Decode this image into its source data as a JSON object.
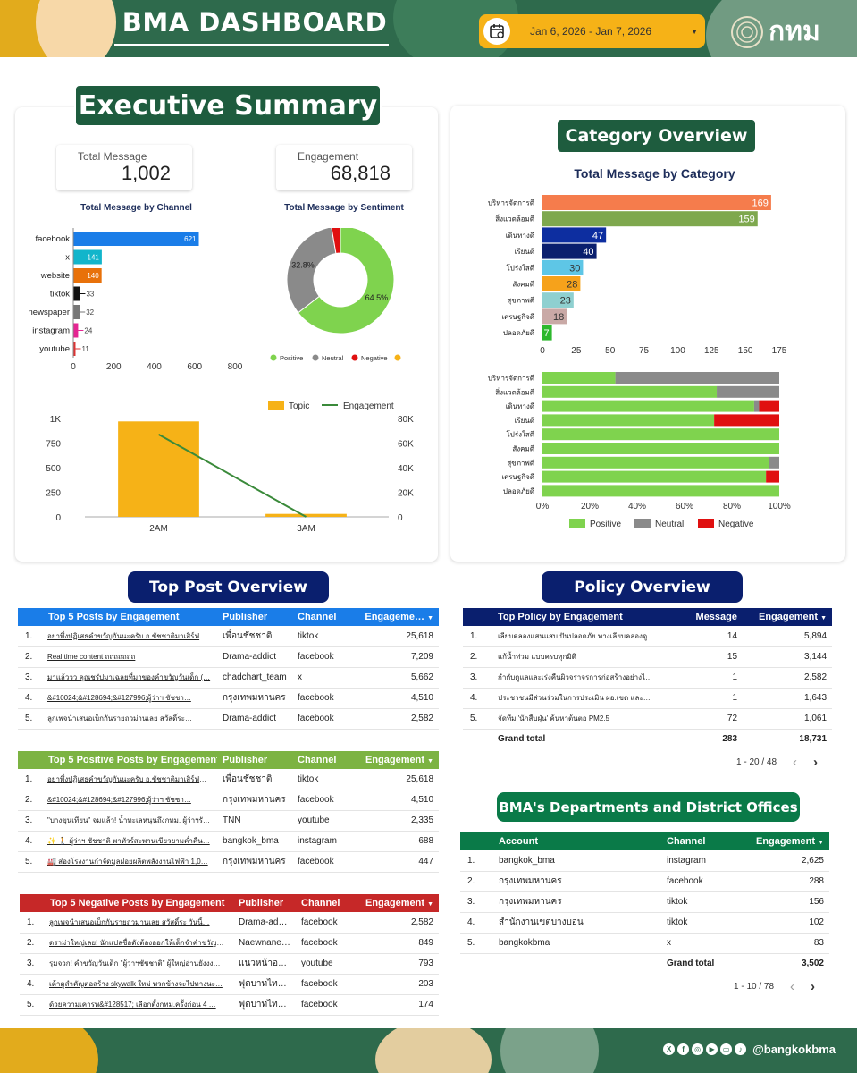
{
  "header": {
    "title": "BMA DASHBOARD",
    "date_range": "Jan 6, 2026 - Jan 7, 2026",
    "logo_text": "กทม"
  },
  "exec": {
    "title": "Executive Summary",
    "kpis": [
      {
        "label": "Total Message",
        "value": "1,002"
      },
      {
        "label": "Engagement",
        "value": "68,818"
      }
    ],
    "channel_title": "Total Message by Channel",
    "sentiment_title": "Total Message by Sentiment",
    "legend_topic": "Topic",
    "legend_engagement": "Engagement"
  },
  "category": {
    "title": "Category Overview",
    "chart_title": "Total Message by Category"
  },
  "top_post": {
    "title": "Top Post Overview",
    "tables": [
      {
        "headers": [
          "Top 5 Posts by Engagement",
          "Publisher",
          "Channel",
          "Engageme…"
        ],
        "rows": [
          [
            "1.",
            "อย่าพึ่งปฏิเสธคำขวัญกันนะครับ อ.ชัชชาติมาเสิร์ฟคำ…",
            "เพื่อนชัชชาติ",
            "tiktok",
            "25,618"
          ],
          [
            "2.",
            "Real time content ถถถถถถถ",
            "Drama-addict",
            "facebook",
            "7,209"
          ],
          [
            "3.",
            "มาแล้ววว คุณชรัปมาเฉลยที่มาของคำขวัญวันเด็ก (…",
            "chadchart_team",
            "x",
            "5,662"
          ],
          [
            "4.",
            "&#10024;&#128694;&#127996;ผู้ว่าฯ ชัชชา…",
            "กรุงเทพมหานคร",
            "facebook",
            "4,510"
          ],
          [
            "5.",
            "ลูกเพจนำเสนอเบ็กกันรายถวม่านเลย สวัสดิ์ระ…",
            "Drama-addict",
            "facebook",
            "2,582"
          ]
        ]
      },
      {
        "headers": [
          "Top 5 Positive Posts by Engagement",
          "Publisher",
          "Channel",
          "Engagement"
        ],
        "rows": [
          [
            "1.",
            "อย่าพึ่งปฏิเสธคำขวัญกันนะครับ อ.ชัชชาติมาเสิร์ฟคำ…",
            "เพื่อนชัชชาติ",
            "tiktok",
            "25,618"
          ],
          [
            "2.",
            "&#10024;&#128694;&#127996;ผู้ว่าฯ ชัชชา…",
            "กรุงเทพมหานคร",
            "facebook",
            "4,510"
          ],
          [
            "3.",
            "\"บางขุนเทียน\" จมแล้ว! น้ำทะเลหนุนถึงกทม. ผู้ว่าฯรั…",
            "TNN",
            "youtube",
            "2,335"
          ],
          [
            "4.",
            "✨ 🚶 ผู้ว่าฯ ชัชชาติ พาทัวร์สะพานเขียวยามค่ำคืน…",
            "bangkok_bma",
            "instagram",
            "688"
          ],
          [
            "5.",
            "🏭 ส่องโรงงานกำจัดมูลฝอยผลิตพลังงานไฟฟ้า 1,0…",
            "กรุงเทพมหานคร",
            "facebook",
            "447"
          ]
        ]
      },
      {
        "headers": [
          "Top 5 Negative Posts by Engagement",
          "Publisher",
          "Channel",
          "Engagement"
        ],
        "rows": [
          [
            "1.",
            "ลูกเพจนำเสนอเบ็กกันรายถวม่านเลย สวัสดิ์ระ วันนี้…",
            "Drama-add…",
            "facebook",
            "2,582"
          ],
          [
            "2.",
            "ดราม่าใหญ่เลย! นักแปลชื่อดังต้องออกให้เด็กจำคำขวัญผู้…",
            "Naewnane…",
            "facebook",
            "849"
          ],
          [
            "3.",
            "รุมจวก! คำขวัญวันเด็ก \"ผู้ว่าฯชัชชาติ\" ผู้ใหญ่อ่านยังงง…",
            "แนวหน้าออนไ…",
            "youtube",
            "793"
          ],
          [
            "4.",
            "เต้าตูสำคัญต่อสร้าง skywalk ใหม่ พวกข้างจะไปทางนะ…",
            "ฟุตบาทไทยไ…",
            "facebook",
            "203"
          ],
          [
            "5.",
            "ด้วยความเคารพ&#128517; เลือกตั้งกทม.ครั้งก่อน 4 …",
            "ฟุตบาทไทยไ…",
            "facebook",
            "174"
          ]
        ]
      }
    ]
  },
  "policy": {
    "title": "Policy Overview",
    "headers": [
      "Top Policy by Engagement",
      "Message",
      "Engagement"
    ],
    "rows": [
      [
        "1.",
        "เลียบคลองแสนแสบ ปันปลอดภัย ทางเลียบคลองดู…",
        "14",
        "5,894"
      ],
      [
        "2.",
        "แก้น้ำท่วม แบบครบทุกมิติ",
        "15",
        "3,144"
      ],
      [
        "3.",
        "กำกับดูแลและเร่งคืนผิวจราจรการก่อสร้างอย่างไ…",
        "1",
        "2,582"
      ],
      [
        "4.",
        "ประชาชนมีส่วนร่วมในการประเมิน ผอ.เขต และ…",
        "1",
        "1,643"
      ],
      [
        "5.",
        "จัดทีม 'นักสืบฝุ่น' ค้นหาต้นตอ PM2.5",
        "72",
        "1,061"
      ]
    ],
    "total_label": "Grand total",
    "total_message": "283",
    "total_engagement": "18,731",
    "pager": "1 - 20 / 48"
  },
  "departments": {
    "title": "BMA's Departments and District Offices",
    "headers": [
      "Account",
      "Channel",
      "Engagement"
    ],
    "rows": [
      [
        "1.",
        "bangkok_bma",
        "instagram",
        "2,625"
      ],
      [
        "2.",
        "กรุงเทพมหานคร",
        "facebook",
        "288"
      ],
      [
        "3.",
        "กรุงเทพมหานคร",
        "tiktok",
        "156"
      ],
      [
        "4.",
        "สำนักงานเขตบางบอน",
        "tiktok",
        "102"
      ],
      [
        "5.",
        "bangkokbma",
        "x",
        "83"
      ]
    ],
    "total_label": "Grand total",
    "total_engagement": "3,502",
    "pager": "1 - 10 / 78"
  },
  "footer": {
    "handle": "@bangkokbma"
  },
  "colors": {
    "green_dark": "#2e6a4c",
    "orange": "#f6b217",
    "navy": "#0a1f6e",
    "blue_header": "#1a7de8",
    "green_header": "#7cb342",
    "red_header": "#c62828",
    "dept_green": "#0a7a48",
    "positive": "#7fd34e",
    "neutral": "#8a8a8a",
    "negative": "#e01010"
  },
  "chart_data": [
    {
      "type": "bar",
      "orientation": "horizontal",
      "title": "Total Message by Channel",
      "categories": [
        "facebook",
        "x",
        "website",
        "tiktok",
        "newspaper",
        "instagram",
        "youtube"
      ],
      "values": [
        621,
        141,
        140,
        33,
        32,
        24,
        11
      ],
      "colors": [
        "#1a7de8",
        "#12b5cb",
        "#e8710a",
        "#111111",
        "#777777",
        "#e52592",
        "#d33"
      ],
      "xticks": [
        "0",
        "200",
        "400",
        "600",
        "800"
      ],
      "xlim": [
        0,
        800
      ]
    },
    {
      "type": "pie",
      "title": "Total Message by Sentiment",
      "labels": [
        "Positive",
        "Neutral",
        "Negative",
        ""
      ],
      "values": [
        64.5,
        32.8,
        2.7,
        0
      ],
      "value_labels": [
        "64.5%",
        "32.8%",
        "",
        ""
      ],
      "colors": [
        "#7fd34e",
        "#8a8a8a",
        "#e01010",
        "#f6b217"
      ],
      "donut": true,
      "legend": "bottom"
    },
    {
      "type": "bar",
      "title": "",
      "categories": [
        "2AM",
        "3AM"
      ],
      "series": [
        {
          "name": "Topic",
          "type": "bar",
          "axis": "left",
          "values": [
            970,
            30
          ],
          "color": "#f6b217"
        },
        {
          "name": "Engagement",
          "type": "line",
          "axis": "right",
          "values": [
            67000,
            0
          ],
          "color": "#3a8a3a"
        }
      ],
      "yticks_left": [
        "0",
        "250",
        "500",
        "750",
        "1K"
      ],
      "ylim_left": [
        0,
        1000
      ],
      "yticks_right": [
        "0",
        "20K",
        "40K",
        "60K",
        "80K"
      ],
      "ylim_right": [
        0,
        80000
      ],
      "legend": "top-right"
    },
    {
      "type": "bar",
      "orientation": "horizontal",
      "title": "Total Message by Category",
      "categories": [
        "บริหารจัดการดี",
        "สิ่งแวดล้อมดี",
        "เดินทางดี",
        "เรียนดี",
        "โปร่งใสดี",
        "สังคมดี",
        "สุขภาพดี",
        "เศรษฐกิจดี",
        "ปลอดภัยดี"
      ],
      "values": [
        169,
        159,
        47,
        40,
        30,
        28,
        23,
        18,
        7
      ],
      "colors": [
        "#f57c4c",
        "#7ea84e",
        "#0d2ea0",
        "#0a1f6e",
        "#5ec6e6",
        "#f6a21b",
        "#8fd0d0",
        "#c9a9a6",
        "#2db82d"
      ],
      "xticks": [
        "0",
        "25",
        "50",
        "75",
        "100",
        "125",
        "150",
        "175"
      ],
      "xlim": [
        0,
        175
      ]
    },
    {
      "type": "bar",
      "orientation": "horizontal",
      "stacked": "percent",
      "title": "",
      "categories": [
        "บริหารจัดการดี",
        "สิ่งแวดล้อมดี",
        "เดินทางดี",
        "เรียนดี",
        "โปร่งใสดี",
        "สังคมดี",
        "สุขภาพดี",
        "เศรษฐกิจดี",
        "ปลอดภัยดี"
      ],
      "series": [
        {
          "name": "Positive",
          "values": [
            30.8,
            73.6,
            89.4,
            72.5,
            100,
            100,
            95.7,
            94.4,
            100
          ],
          "color": "#7fd34e"
        },
        {
          "name": "Neutral",
          "values": [
            69.2,
            26.4,
            2.1,
            0,
            0,
            0,
            4.3,
            0,
            0
          ],
          "color": "#8a8a8a"
        },
        {
          "name": "Negative",
          "values": [
            0,
            0,
            8.5,
            27.5,
            0,
            0,
            0,
            5.6,
            0
          ],
          "color": "#e01010"
        }
      ],
      "xticks": [
        "0%",
        "20%",
        "40%",
        "60%",
        "80%",
        "100%"
      ],
      "legend": "bottom"
    }
  ]
}
